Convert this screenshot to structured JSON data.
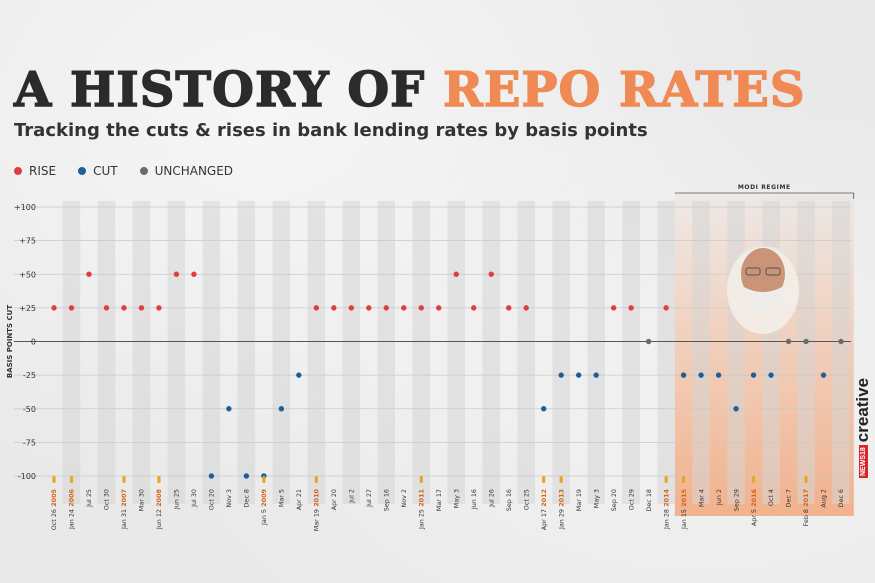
{
  "header": {
    "title_part1": "A HISTORY OF",
    "title_part2": "REPO RATES",
    "subtitle": "Tracking the cuts & rises in bank lending rates by basis points"
  },
  "legend": {
    "rise": "RISE",
    "cut": "CUT",
    "unchanged": "UNCHANGED"
  },
  "brand": {
    "box": "NEWS18",
    "word": "creative"
  },
  "colors": {
    "rise": "#e23d3d",
    "cut": "#1e5f9a",
    "unchanged": "#6b6b6b",
    "accent": "#f08a55",
    "highlight": "#f2a274",
    "year_marker": "#e8a81c",
    "year_text": "#d2661d"
  },
  "chart_data": {
    "type": "scatter",
    "title": "A HISTORY OF REPO RATES",
    "ylabel": "BASIS POINTS CUT",
    "ylim": [
      -100,
      100
    ],
    "yticks": [
      100,
      75,
      50,
      25,
      0,
      -25,
      -50,
      -75,
      -100
    ],
    "ytick_labels": [
      "+100",
      "+75",
      "+50",
      "+25",
      "0",
      "-25",
      "-50",
      "-75",
      "-100"
    ],
    "legend_position": "top-left",
    "highlight_region": {
      "label": "MODI REGIME",
      "from_index": 36,
      "to_index": 45
    },
    "points": [
      {
        "date": "Oct 26",
        "year": "2005",
        "value": 25
      },
      {
        "date": "Jan 24",
        "year": "2006",
        "value": 25
      },
      {
        "date": "Jul 25",
        "value": 50
      },
      {
        "date": "Oct 30",
        "value": 25
      },
      {
        "date": "Jan 31",
        "year": "2007",
        "value": 25
      },
      {
        "date": "Mar 30",
        "value": 25
      },
      {
        "date": "Jun 12",
        "year": "2008",
        "value": 25
      },
      {
        "date": "Jun 25",
        "value": 50
      },
      {
        "date": "Jul 30",
        "value": 50
      },
      {
        "date": "Oct 20",
        "value": -100
      },
      {
        "date": "Nov 3",
        "value": -50
      },
      {
        "date": "Dec 8",
        "value": -100
      },
      {
        "date": "Jan 5",
        "year": "2009",
        "value": -100
      },
      {
        "date": "Mar 5",
        "value": -50
      },
      {
        "date": "Apr 21",
        "value": -25
      },
      {
        "date": "Mar 19",
        "year": "2010",
        "value": 25
      },
      {
        "date": "Apr 20",
        "value": 25
      },
      {
        "date": "Jul 2",
        "value": 25
      },
      {
        "date": "Jul 27",
        "value": 25
      },
      {
        "date": "Sep 16",
        "value": 25
      },
      {
        "date": "Nov 2",
        "value": 25
      },
      {
        "date": "Jan 25",
        "year": "2011",
        "value": 25
      },
      {
        "date": "Mar 17",
        "value": 25
      },
      {
        "date": "May 3",
        "value": 50
      },
      {
        "date": "Jun 16",
        "value": 25
      },
      {
        "date": "Jul 26",
        "value": 50
      },
      {
        "date": "Sep 16",
        "value": 25
      },
      {
        "date": "Oct 25",
        "value": 25
      },
      {
        "date": "Apr 17",
        "year": "2012",
        "value": -50
      },
      {
        "date": "Jan 29",
        "year": "2013",
        "value": -25
      },
      {
        "date": "Mar 19",
        "value": -25
      },
      {
        "date": "May 3",
        "value": -25
      },
      {
        "date": "Sep 20",
        "value": 25
      },
      {
        "date": "Oct 29",
        "value": 25
      },
      {
        "date": "Dec 18",
        "value": 0
      },
      {
        "date": "Jan 28",
        "year": "2014",
        "value": 25
      },
      {
        "date": "Jan 15",
        "year": "2015",
        "value": -25
      },
      {
        "date": "Mar 4",
        "value": -25
      },
      {
        "date": "Jun 2",
        "value": -25
      },
      {
        "date": "Sep 29",
        "value": -50
      },
      {
        "date": "Apr 5",
        "year": "2016",
        "value": -25
      },
      {
        "date": "Oct 4",
        "value": -25
      },
      {
        "date": "Dec 7",
        "value": 0
      },
      {
        "date": "Feb 8",
        "year": "2017",
        "value": 0
      },
      {
        "date": "Aug 2",
        "value": -25
      },
      {
        "date": "Dec 6",
        "value": 0
      }
    ]
  }
}
